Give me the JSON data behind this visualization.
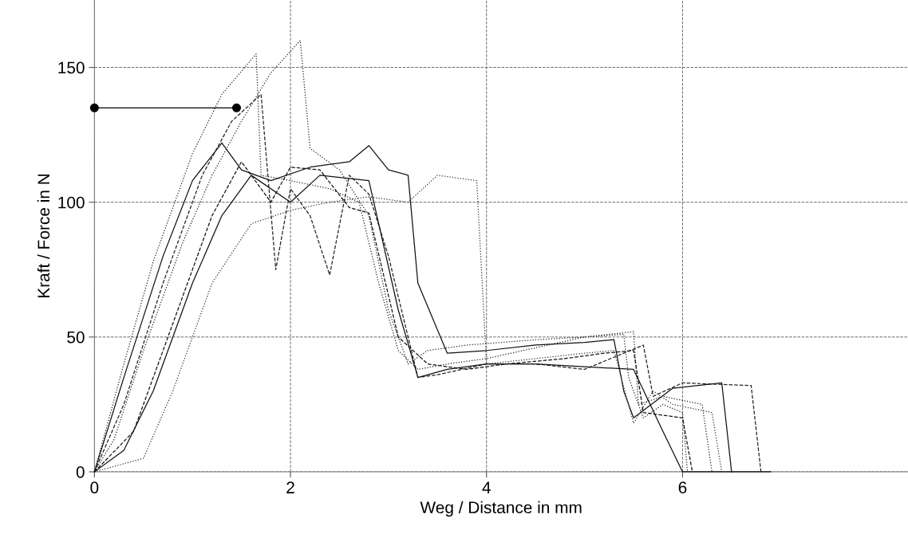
{
  "chart_data": {
    "type": "line",
    "xlabel": "Weg / Distance in mm",
    "ylabel": "Kraft / Force in N",
    "xlim": [
      0,
      8.3
    ],
    "xticks": [
      0,
      2,
      4,
      6
    ],
    "ylim": [
      0,
      175
    ],
    "yticks": [
      0,
      50,
      100,
      150
    ],
    "grid": true,
    "marker": "none",
    "series": [
      {
        "color": "#222222",
        "line_style": "dotted",
        "x": [
          0,
          0.3,
          0.6,
          1.0,
          1.3,
          1.65,
          1.7,
          2.0,
          2.4,
          2.7,
          2.9,
          3.1,
          3.3,
          3.6,
          4.0,
          4.5,
          5.0,
          5.4,
          5.45,
          5.6,
          5.8,
          6.0,
          6.05
        ],
        "values": [
          0,
          40,
          78,
          118,
          140,
          155,
          110,
          108,
          105,
          100,
          70,
          45,
          38,
          40,
          42,
          46,
          50,
          51,
          35,
          20,
          25,
          22,
          0
        ]
      },
      {
        "color": "#222222",
        "line_style": "dotted",
        "x": [
          0,
          0.2,
          0.5,
          0.9,
          1.2,
          1.5,
          1.8,
          2.1,
          2.2,
          2.5,
          2.8,
          3.0,
          3.2,
          3.4,
          3.8,
          4.5,
          5.0,
          5.5,
          5.55,
          5.8,
          6.2,
          6.3
        ],
        "values": [
          0,
          12,
          45,
          85,
          110,
          130,
          148,
          160,
          120,
          112,
          95,
          60,
          40,
          45,
          47,
          49,
          50,
          52,
          25,
          28,
          25,
          0
        ]
      },
      {
        "color": "#111111",
        "line_style": "solid",
        "x": [
          0,
          0.3,
          0.7,
          1.0,
          1.3,
          1.5,
          1.8,
          2.2,
          2.6,
          2.8,
          3.0,
          3.2,
          3.3,
          3.6,
          4.0,
          4.5,
          5.0,
          5.3,
          5.4,
          5.5,
          5.9,
          6.4,
          6.5
        ],
        "values": [
          0,
          35,
          80,
          108,
          122,
          112,
          108,
          113,
          115,
          121,
          112,
          110,
          70,
          44,
          45,
          47,
          48,
          49,
          30,
          20,
          31,
          33,
          0
        ]
      },
      {
        "color": "#111111",
        "line_style": "dashed",
        "x": [
          0,
          0.4,
          0.8,
          1.2,
          1.5,
          1.8,
          2.0,
          2.3,
          2.6,
          2.8,
          3.1,
          3.4,
          3.8,
          4.2,
          4.8,
          5.2,
          5.5,
          5.6,
          6.0,
          6.1
        ],
        "values": [
          0,
          15,
          55,
          95,
          115,
          100,
          113,
          112,
          98,
          96,
          50,
          40,
          38,
          40,
          42,
          44,
          45,
          22,
          20,
          0
        ]
      },
      {
        "color": "#333333",
        "line_style": "dotted",
        "x": [
          0,
          0.5,
          0.8,
          1.2,
          1.6,
          2.0,
          2.4,
          2.8,
          3.2,
          3.5,
          3.9,
          4.0,
          4.5,
          5.0,
          5.3,
          5.5,
          5.7,
          5.9,
          6.3,
          6.4
        ],
        "values": [
          0,
          5,
          30,
          70,
          92,
          97,
          100,
          102,
          100,
          110,
          108,
          40,
          42,
          44,
          45,
          18,
          30,
          25,
          22,
          0
        ]
      },
      {
        "color": "#222222",
        "line_style": "dashed",
        "x": [
          0,
          0.3,
          0.7,
          1.1,
          1.4,
          1.7,
          1.85,
          2.0,
          2.2,
          2.4,
          2.6,
          2.8,
          3.0,
          3.3,
          3.5,
          4.0,
          4.5,
          5.0,
          5.6,
          5.7,
          6.0,
          6.7,
          6.8
        ],
        "values": [
          0,
          25,
          70,
          110,
          130,
          140,
          75,
          105,
          95,
          73,
          110,
          103,
          80,
          35,
          36,
          40,
          40,
          38,
          47,
          28,
          33,
          32,
          0
        ]
      },
      {
        "color": "#111111",
        "line_style": "solid",
        "x": [
          0,
          0.3,
          0.6,
          1.0,
          1.3,
          1.6,
          2.0,
          2.3,
          2.8,
          3.1,
          3.3,
          3.6,
          4.0,
          4.5,
          5.0,
          5.5,
          5.8,
          6.0,
          6.9
        ],
        "values": [
          0,
          8,
          30,
          70,
          95,
          110,
          100,
          110,
          108,
          60,
          35,
          38,
          40,
          40,
          39,
          38,
          15,
          0,
          0
        ]
      },
      {
        "color": "#000000",
        "line_style": "solid",
        "marker": "circle",
        "x": [
          0,
          1.45
        ],
        "values": [
          135,
          135
        ]
      }
    ]
  }
}
